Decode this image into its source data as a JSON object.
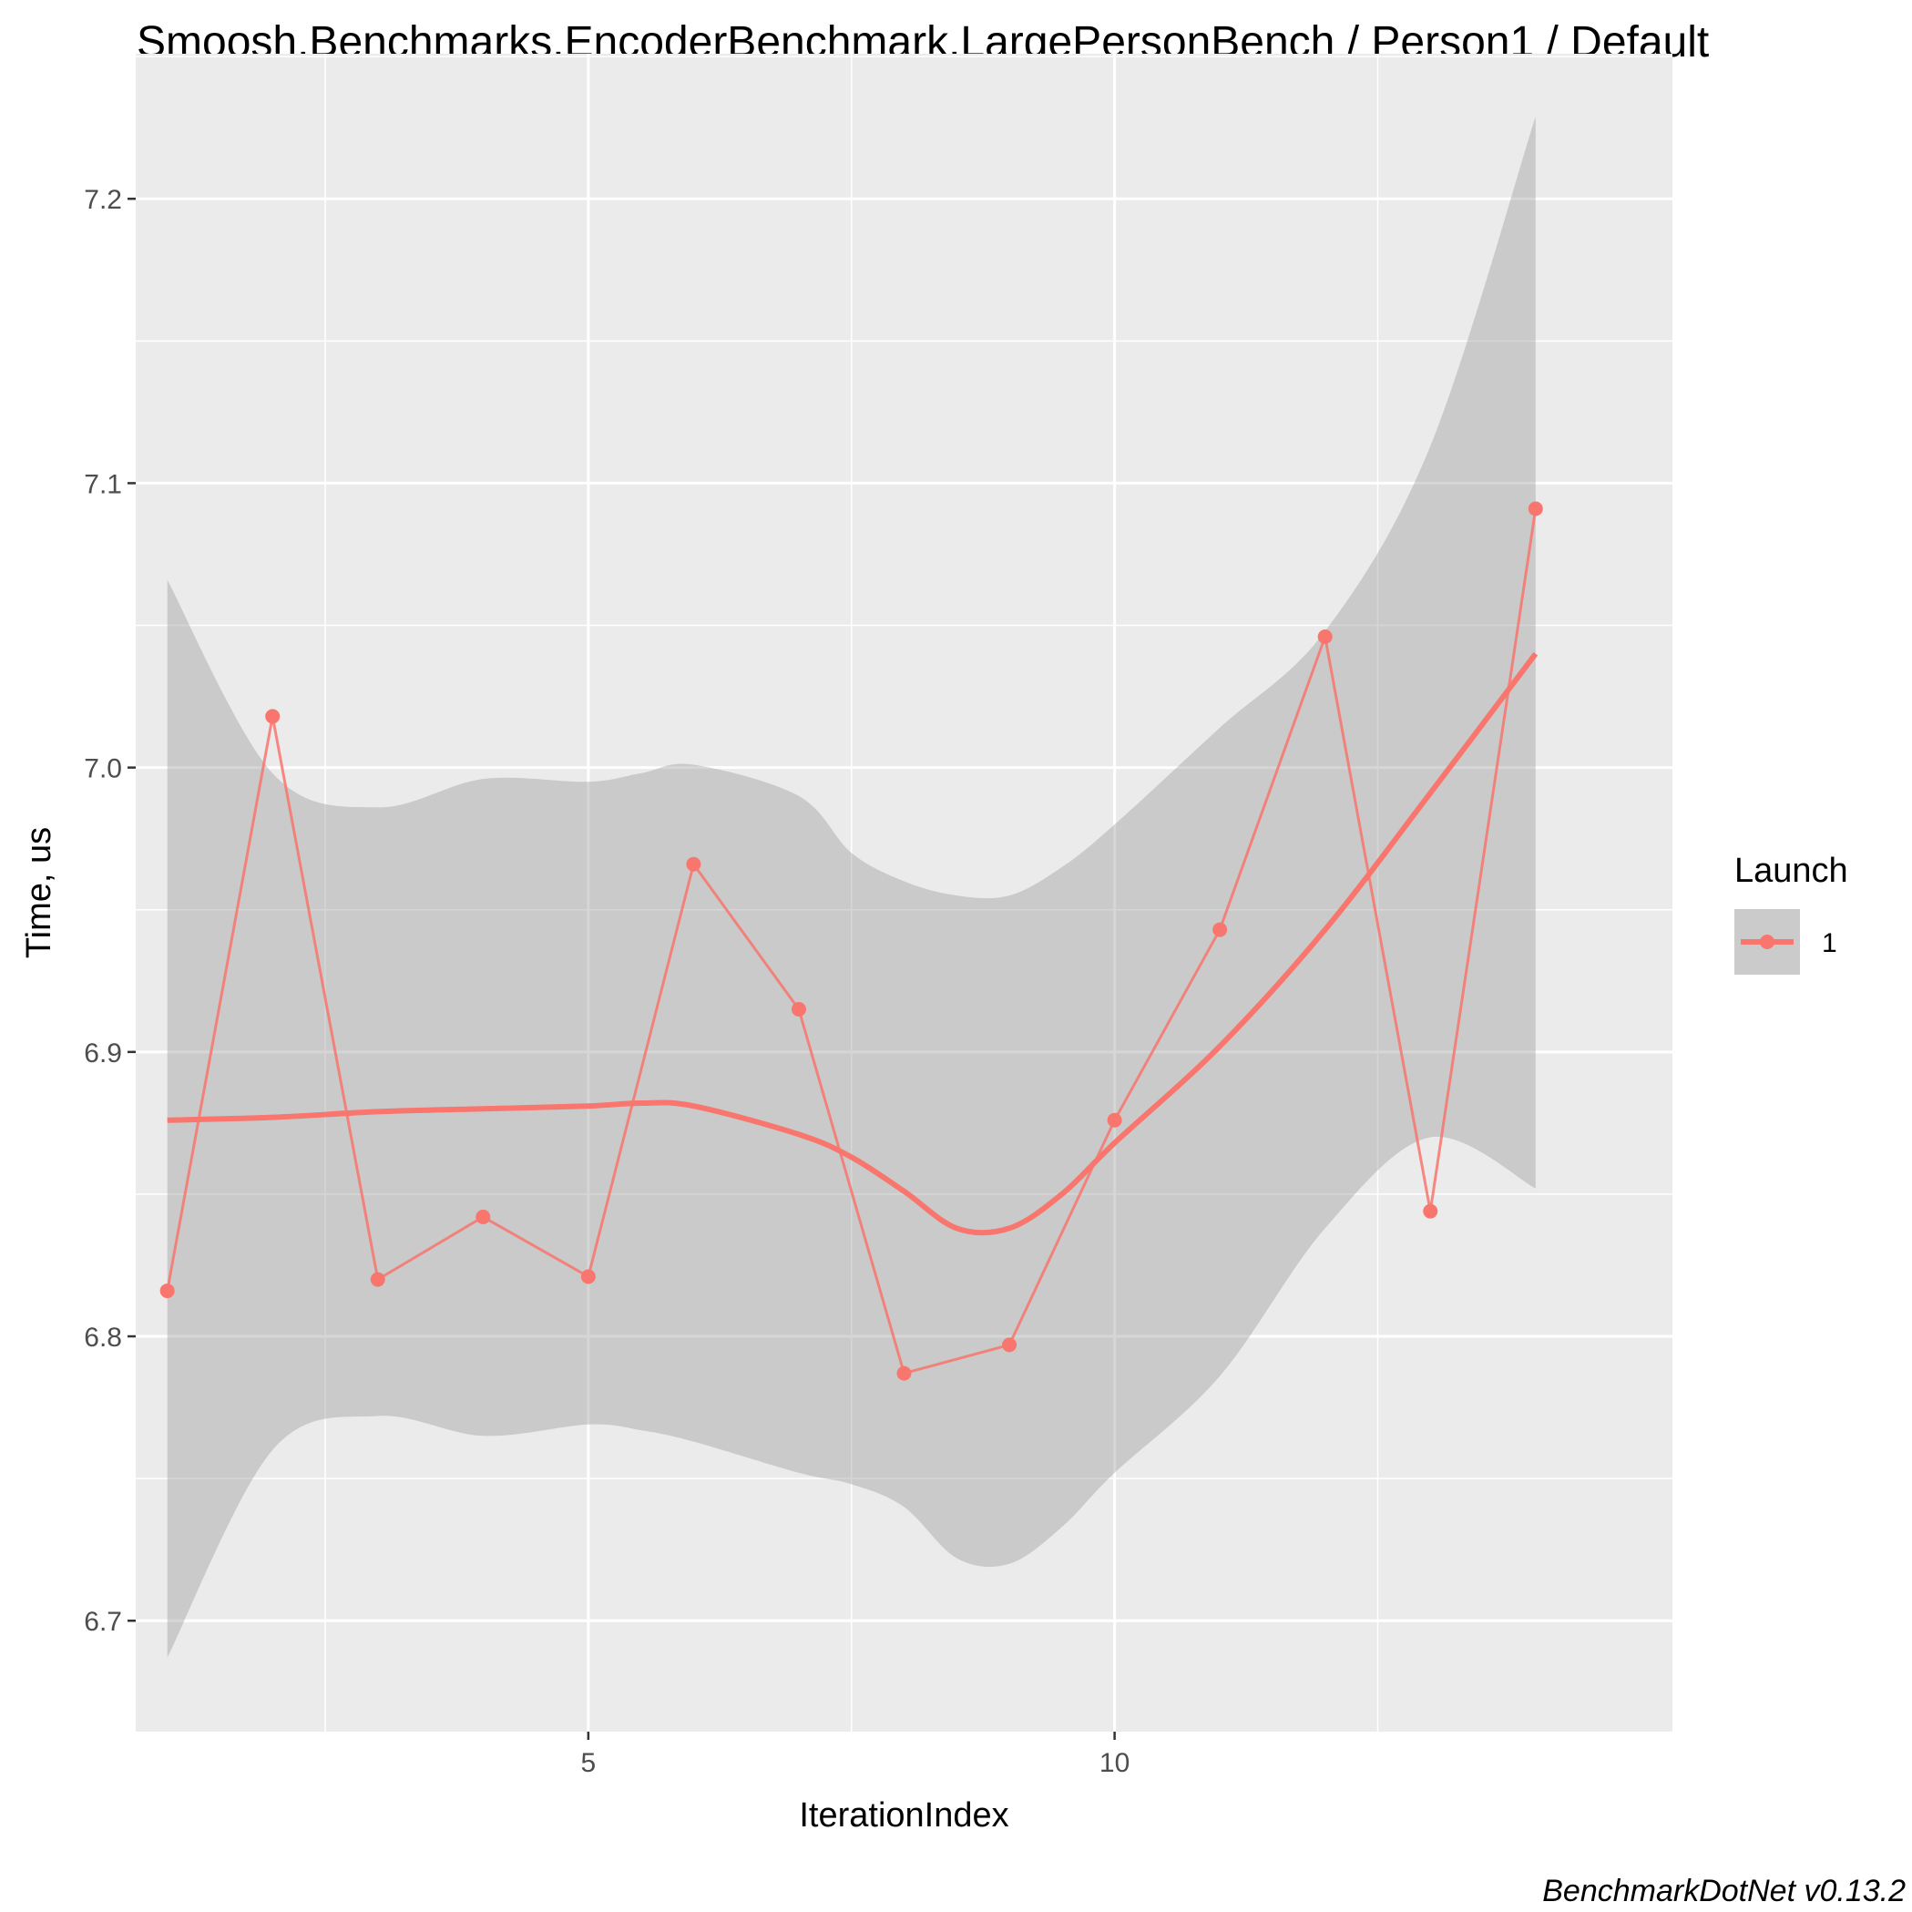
{
  "title": "Smoosh.Benchmarks.EncoderBenchmark.LargePersonBench / Person1 / Default",
  "caption": "BenchmarkDotNet v0.13.2",
  "chart_data": {
    "type": "line",
    "xlabel": "IterationIndex",
    "ylabel": "Time, us",
    "xlim": [
      0.7,
      15.3
    ],
    "ylim": [
      6.661,
      7.251
    ],
    "x_ticks": [
      5,
      10
    ],
    "x_tick_labels": [
      "5",
      "10"
    ],
    "y_ticks": [
      6.7,
      6.8,
      6.9,
      7.0,
      7.1,
      7.2
    ],
    "y_tick_labels": [
      "6.7",
      "6.8",
      "6.9",
      "7.0",
      "7.1",
      "7.2"
    ],
    "grid": true,
    "legend": {
      "title": "Launch",
      "entries": [
        "1"
      ],
      "placement": "right"
    },
    "series": [
      {
        "name": "1",
        "color": "#f8766d",
        "x": [
          1,
          2,
          3,
          4,
          5,
          6,
          7,
          8,
          9,
          10,
          11,
          12,
          13,
          14
        ],
        "values": [
          6.816,
          7.018,
          6.82,
          6.842,
          6.821,
          6.966,
          6.915,
          6.787,
          6.797,
          6.876,
          6.943,
          7.046,
          6.844,
          7.091
        ]
      }
    ],
    "smooth": {
      "color": "#f8766d",
      "ribbon_color": "#999999",
      "x": [
        1,
        2,
        3,
        4,
        5,
        5.5,
        6,
        7,
        7.5,
        8,
        8.5,
        9,
        9.5,
        10,
        11,
        12,
        13,
        14
      ],
      "fit": [
        6.876,
        6.877,
        6.879,
        6.88,
        6.881,
        6.882,
        6.881,
        6.871,
        6.863,
        6.851,
        6.838,
        6.838,
        6.85,
        6.868,
        6.902,
        6.943,
        6.991,
        7.04
      ],
      "lower": [
        6.687,
        6.76,
        6.772,
        6.765,
        6.769,
        6.767,
        6.763,
        6.752,
        6.748,
        6.74,
        6.722,
        6.72,
        6.733,
        6.752,
        6.786,
        6.838,
        6.87,
        6.852
      ],
      "upper": [
        7.066,
        6.998,
        6.986,
        6.996,
        6.995,
        6.998,
        7.001,
        6.99,
        6.97,
        6.96,
        6.955,
        6.955,
        6.965,
        6.98,
        7.014,
        7.048,
        7.113,
        7.229
      ]
    }
  }
}
